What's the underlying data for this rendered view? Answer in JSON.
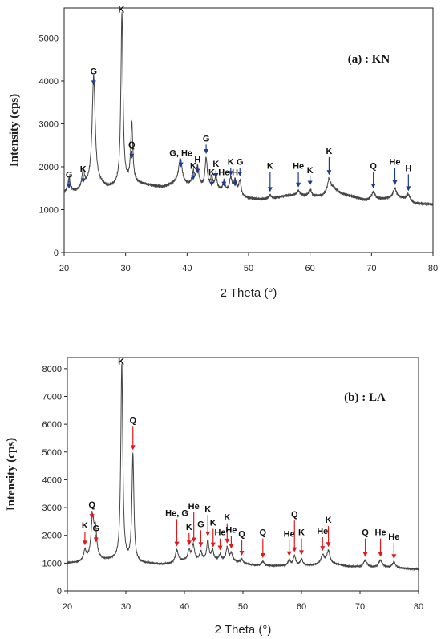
{
  "chart_data": [
    {
      "type": "line",
      "title": "(a) : KN",
      "xlabel": "2 Theta (°)",
      "ylabel": "Intensity (cps)",
      "xlim": [
        20,
        80
      ],
      "ylim": [
        0,
        5700
      ],
      "x_ticks": [
        20,
        30,
        40,
        50,
        60,
        70,
        80
      ],
      "y_ticks": [
        0,
        1000,
        2000,
        3000,
        4000,
        5000
      ],
      "arrow_color": "#1f3b8c",
      "line_color": "#444444",
      "baseline": [
        [
          20,
          1380
        ],
        [
          21,
          1400
        ],
        [
          22,
          1420
        ],
        [
          23,
          1470
        ],
        [
          24,
          1550
        ],
        [
          26,
          1570
        ],
        [
          27,
          1500
        ],
        [
          28,
          1520
        ],
        [
          30,
          1600
        ],
        [
          32,
          1600
        ],
        [
          34,
          1560
        ],
        [
          36,
          1520
        ],
        [
          38,
          1600
        ],
        [
          40,
          1560
        ],
        [
          43,
          1500
        ],
        [
          46,
          1420
        ],
        [
          48,
          1420
        ],
        [
          49,
          1300
        ],
        [
          50,
          1260
        ],
        [
          52,
          1240
        ],
        [
          54,
          1260
        ],
        [
          56,
          1320
        ],
        [
          58,
          1350
        ],
        [
          60,
          1300
        ],
        [
          62,
          1320
        ],
        [
          63.8,
          1500
        ],
        [
          65,
          1380
        ],
        [
          67,
          1300
        ],
        [
          69,
          1220
        ],
        [
          71,
          1240
        ],
        [
          73,
          1260
        ],
        [
          75,
          1260
        ],
        [
          77,
          1140
        ],
        [
          80,
          1120
        ]
      ],
      "peaks": [
        {
          "x": 20.8,
          "h": 320,
          "w": 0.25
        },
        {
          "x": 23.1,
          "h": 420,
          "w": 0.22
        },
        {
          "x": 24.8,
          "h": 2550,
          "w": 0.3
        },
        {
          "x": 29.4,
          "h": 4000,
          "w": 0.2
        },
        {
          "x": 31.0,
          "h": 1400,
          "w": 0.2
        },
        {
          "x": 38.9,
          "h": 600,
          "w": 0.35
        },
        {
          "x": 41.0,
          "h": 300,
          "w": 0.25
        },
        {
          "x": 41.7,
          "h": 450,
          "w": 0.25
        },
        {
          "x": 43.1,
          "h": 680,
          "w": 0.22
        },
        {
          "x": 44.0,
          "h": 250,
          "w": 0.22
        },
        {
          "x": 44.7,
          "h": 280,
          "w": 0.22
        },
        {
          "x": 46.0,
          "h": 200,
          "w": 0.22
        },
        {
          "x": 47.1,
          "h": 320,
          "w": 0.22
        },
        {
          "x": 47.8,
          "h": 250,
          "w": 0.22
        },
        {
          "x": 48.6,
          "h": 320,
          "w": 0.22
        },
        {
          "x": 53.5,
          "h": 80,
          "w": 0.25
        },
        {
          "x": 58.1,
          "h": 90,
          "w": 0.25
        },
        {
          "x": 60.0,
          "h": 180,
          "w": 0.25
        },
        {
          "x": 63.1,
          "h": 300,
          "w": 0.3
        },
        {
          "x": 70.3,
          "h": 180,
          "w": 0.35
        },
        {
          "x": 73.8,
          "h": 230,
          "w": 0.35
        },
        {
          "x": 76.0,
          "h": 150,
          "w": 0.35
        }
      ],
      "annotations": [
        {
          "label": "G",
          "x": 20.8,
          "y": 1750
        },
        {
          "label": "K",
          "x": 23.1,
          "y": 1880
        },
        {
          "label": "G",
          "x": 24.8,
          "y": 4160
        },
        {
          "label": "K",
          "x": 29.3,
          "y": 5600,
          "no_arrow": true
        },
        {
          "label": "Q",
          "x": 31.0,
          "y": 2450
        },
        {
          "label": "G, He",
          "x": 39.0,
          "y": 2250
        },
        {
          "label": "K",
          "x": 41.0,
          "y": 1950
        },
        {
          "label": "H",
          "x": 41.7,
          "y": 2100
        },
        {
          "label": "G",
          "x": 43.1,
          "y": 2590
        },
        {
          "label": "K",
          "x": 44.0,
          "y": 1800
        },
        {
          "label": "K",
          "x": 44.7,
          "y": 2000
        },
        {
          "label": "He",
          "x": 46.0,
          "y": 1800
        },
        {
          "label": "K",
          "x": 47.1,
          "y": 2050
        },
        {
          "label": "H",
          "x": 47.8,
          "y": 1800
        },
        {
          "label": "G",
          "x": 48.6,
          "y": 2050
        },
        {
          "label": "K",
          "x": 53.5,
          "y": 1950
        },
        {
          "label": "He",
          "x": 58.1,
          "y": 1950
        },
        {
          "label": "K",
          "x": 60.0,
          "y": 1850
        },
        {
          "label": "K",
          "x": 63.1,
          "y": 2300
        },
        {
          "label": "Q",
          "x": 70.3,
          "y": 1950
        },
        {
          "label": "He",
          "x": 73.8,
          "y": 2050
        },
        {
          "label": "H",
          "x": 76.0,
          "y": 1900
        }
      ]
    },
    {
      "type": "line",
      "title": "(b) : LA",
      "xlabel": "2 Theta (°)",
      "ylabel": "Intensity (cps)",
      "xlim": [
        20,
        80
      ],
      "ylim": [
        0,
        8400
      ],
      "x_ticks": [
        20,
        30,
        40,
        50,
        60,
        70,
        80
      ],
      "y_ticks": [
        0,
        1000,
        2000,
        3000,
        4000,
        5000,
        6000,
        7000,
        8000
      ],
      "arrow_color": "#e0191d",
      "line_color": "#444444",
      "baseline": [
        [
          20,
          1000
        ],
        [
          22,
          1020
        ],
        [
          23.5,
          1100
        ],
        [
          25,
          1150
        ],
        [
          26,
          1100
        ],
        [
          28,
          1100
        ],
        [
          30,
          1050
        ],
        [
          32,
          1000
        ],
        [
          34,
          980
        ],
        [
          36,
          950
        ],
        [
          38,
          980
        ],
        [
          40,
          1080
        ],
        [
          42,
          1100
        ],
        [
          44,
          1100
        ],
        [
          46,
          1100
        ],
        [
          48,
          1100
        ],
        [
          50,
          980
        ],
        [
          52,
          920
        ],
        [
          55,
          900
        ],
        [
          57,
          900
        ],
        [
          60,
          900
        ],
        [
          62,
          920
        ],
        [
          64,
          1000
        ],
        [
          66,
          950
        ],
        [
          68,
          880
        ],
        [
          70,
          860
        ],
        [
          72,
          840
        ],
        [
          74,
          850
        ],
        [
          76,
          820
        ],
        [
          78,
          800
        ],
        [
          80,
          780
        ]
      ],
      "peaks": [
        {
          "x": 23.0,
          "h": 350,
          "w": 0.25
        },
        {
          "x": 24.3,
          "h": 1450,
          "w": 0.3
        },
        {
          "x": 24.8,
          "h": 900,
          "w": 0.25
        },
        {
          "x": 29.3,
          "h": 7100,
          "w": 0.2
        },
        {
          "x": 31.2,
          "h": 3850,
          "w": 0.2
        },
        {
          "x": 38.7,
          "h": 450,
          "w": 0.3
        },
        {
          "x": 40.8,
          "h": 350,
          "w": 0.25
        },
        {
          "x": 41.5,
          "h": 550,
          "w": 0.25
        },
        {
          "x": 42.8,
          "h": 300,
          "w": 0.22
        },
        {
          "x": 44.0,
          "h": 700,
          "w": 0.22
        },
        {
          "x": 44.8,
          "h": 350,
          "w": 0.22
        },
        {
          "x": 46.1,
          "h": 200,
          "w": 0.22
        },
        {
          "x": 47.3,
          "h": 450,
          "w": 0.22
        },
        {
          "x": 48.0,
          "h": 250,
          "w": 0.22
        },
        {
          "x": 49.8,
          "h": 150,
          "w": 0.25
        },
        {
          "x": 53.4,
          "h": 150,
          "w": 0.25
        },
        {
          "x": 57.9,
          "h": 200,
          "w": 0.25
        },
        {
          "x": 58.8,
          "h": 350,
          "w": 0.25
        },
        {
          "x": 60.0,
          "h": 250,
          "w": 0.25
        },
        {
          "x": 63.6,
          "h": 300,
          "w": 0.3
        },
        {
          "x": 64.6,
          "h": 450,
          "w": 0.3
        },
        {
          "x": 70.9,
          "h": 250,
          "w": 0.35
        },
        {
          "x": 73.5,
          "h": 250,
          "w": 0.35
        },
        {
          "x": 75.8,
          "h": 200,
          "w": 0.35
        }
      ],
      "annotations": [
        {
          "label": "K",
          "x": 23.0,
          "y": 2250
        },
        {
          "label": "Q",
          "x": 24.2,
          "y": 3000
        },
        {
          "label": "G",
          "x": 24.9,
          "y": 2150
        },
        {
          "label": "K",
          "x": 29.2,
          "y": 8150,
          "no_arrow": true
        },
        {
          "label": "Q",
          "x": 31.2,
          "y": 6050
        },
        {
          "label": "He, G",
          "x": 38.7,
          "y": 2700
        },
        {
          "label": "K",
          "x": 40.8,
          "y": 2200
        },
        {
          "label": "He",
          "x": 41.6,
          "y": 2950
        },
        {
          "label": "G",
          "x": 42.8,
          "y": 2300
        },
        {
          "label": "K",
          "x": 44.0,
          "y": 2850
        },
        {
          "label": "K",
          "x": 44.9,
          "y": 2350
        },
        {
          "label": "He",
          "x": 46.1,
          "y": 2000
        },
        {
          "label": "K",
          "x": 47.3,
          "y": 2550
        },
        {
          "label": "He",
          "x": 48.0,
          "y": 2100
        },
        {
          "label": "Q",
          "x": 49.8,
          "y": 1950
        },
        {
          "label": "Q",
          "x": 53.4,
          "y": 2000
        },
        {
          "label": "He",
          "x": 57.9,
          "y": 1950
        },
        {
          "label": "Q",
          "x": 58.8,
          "y": 2650
        },
        {
          "label": "K",
          "x": 60.0,
          "y": 2000
        },
        {
          "label": "He",
          "x": 63.6,
          "y": 2050
        },
        {
          "label": "K",
          "x": 64.6,
          "y": 2450
        },
        {
          "label": "Q",
          "x": 70.9,
          "y": 2000
        },
        {
          "label": "He",
          "x": 73.5,
          "y": 2000
        },
        {
          "label": "He",
          "x": 75.8,
          "y": 1850
        }
      ]
    }
  ]
}
